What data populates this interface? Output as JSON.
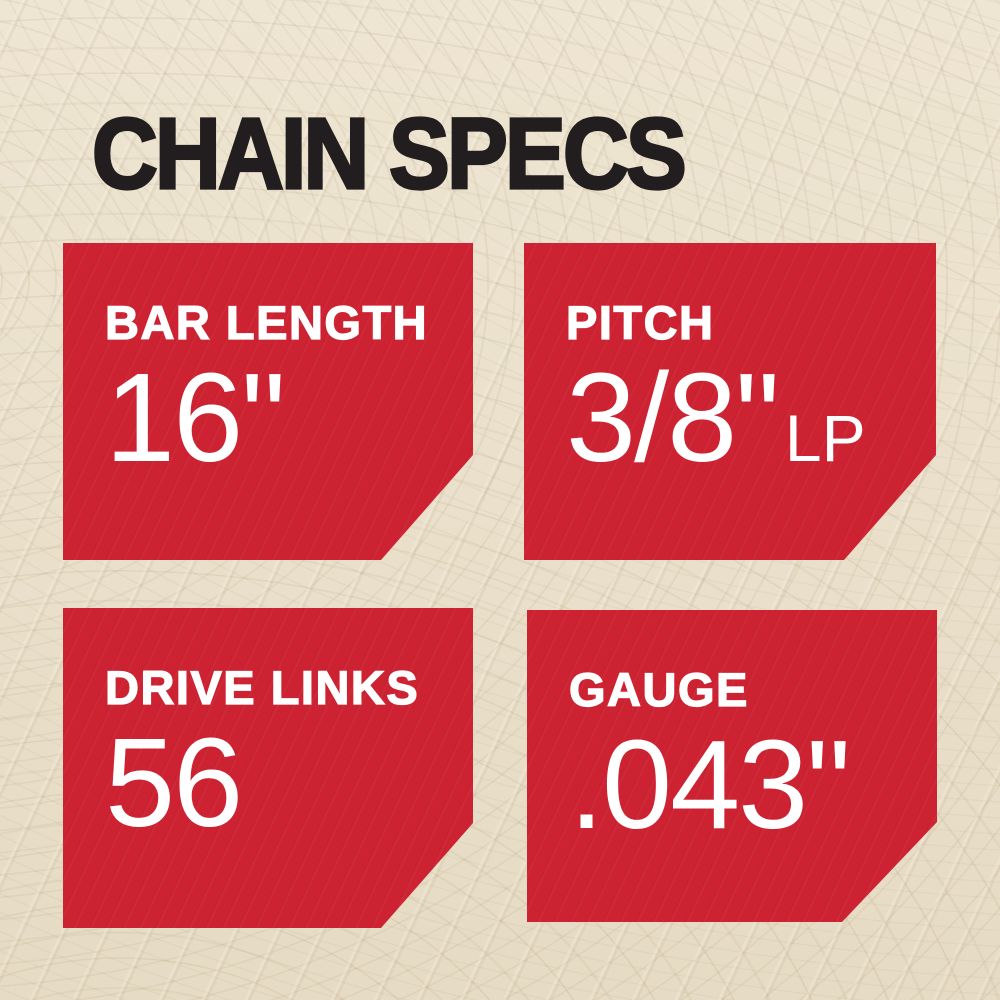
{
  "title": "CHAIN SPECS",
  "colors": {
    "background_cream": "#e9dfca",
    "card_red": "#cd2232",
    "title_black": "#221e1f",
    "card_text_white": "#ffffff"
  },
  "specs": [
    {
      "label": "BAR LENGTH",
      "value": "16\"",
      "suffix": ""
    },
    {
      "label": "PITCH",
      "value": "3/8\"",
      "suffix": "LP"
    },
    {
      "label": "DRIVE LINKS",
      "value": "56",
      "suffix": ""
    },
    {
      "label": "GAUGE",
      "value": ".043\"",
      "suffix": ""
    }
  ]
}
